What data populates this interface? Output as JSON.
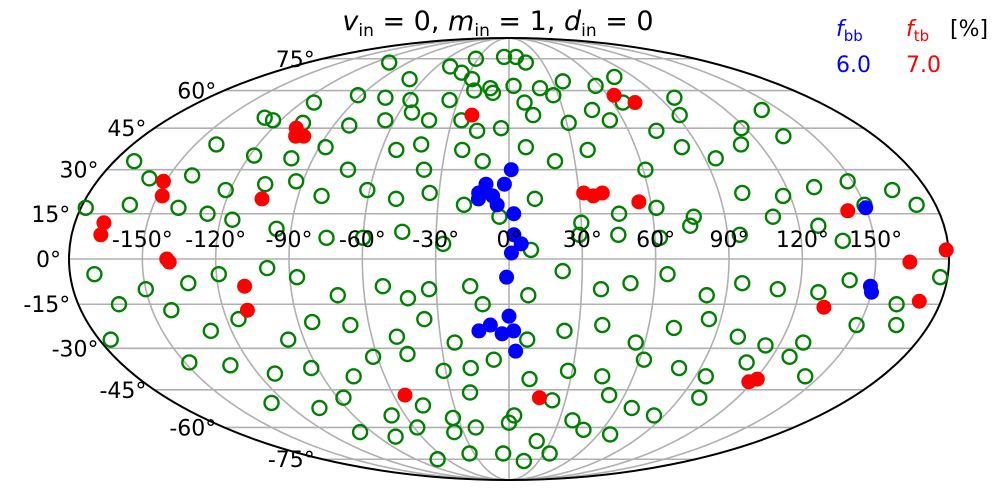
{
  "chart_data": {
    "type": "scatter",
    "projection": "mollweide",
    "title_parts": {
      "v": "v",
      "v_sub": "in",
      "v_val": " = 0, ",
      "m": "m",
      "m_sub": "in",
      "m_val": " = 1, ",
      "d": "d",
      "d_sub": "in",
      "d_val": " = 0"
    },
    "legend": {
      "placement": "top-right",
      "bb_symbol": "f",
      "bb_sub": "bb",
      "bb_value": "6.0",
      "tb_symbol": "f",
      "tb_sub": "tb",
      "tb_value": "7.0",
      "unit": "[%]"
    },
    "colors": {
      "bb": "#0000ff",
      "tb": "#ff0000",
      "other": "#008000",
      "grid": "#b0b0b0",
      "frame": "#000000"
    },
    "grid": true,
    "lon_ticks": [
      "-150°",
      "-120°",
      "-90°",
      "-60°",
      "-30°",
      "0°",
      "30°",
      "60°",
      "90°",
      "120°",
      "150°"
    ],
    "lon_tick_values": [
      -150,
      -120,
      -90,
      -60,
      -30,
      0,
      30,
      60,
      90,
      120,
      150
    ],
    "lat_ticks": [
      "75°",
      "60°",
      "45°",
      "30°",
      "15°",
      "0°",
      "-15°",
      "-30°",
      "-45°",
      "-60°",
      "-75°"
    ],
    "lat_tick_values": [
      75,
      60,
      45,
      30,
      15,
      0,
      -15,
      -30,
      -45,
      -60,
      -75
    ],
    "series": [
      {
        "label_key": "bb",
        "points": [
          [
            -13,
            22
          ],
          [
            -7,
            21
          ],
          [
            -2,
            25
          ],
          [
            -10,
            25
          ],
          [
            1,
            30
          ],
          [
            -13,
            20
          ],
          [
            -5,
            18
          ],
          [
            2,
            15
          ],
          [
            2,
            8
          ],
          [
            5,
            5
          ],
          [
            1,
            2
          ],
          [
            -1,
            -6
          ],
          [
            -13,
            -24
          ],
          [
            -8,
            -22
          ],
          [
            -3,
            -25
          ],
          [
            0,
            -19
          ],
          [
            2,
            -24
          ],
          [
            3,
            -31
          ],
          [
            150,
            17
          ],
          [
            149,
            -9
          ],
          [
            150,
            -11
          ]
        ]
      },
      {
        "label_key": "tb",
        "points": [
          [
            -20,
            50
          ],
          [
            32,
            22
          ],
          [
            36,
            21
          ],
          [
            40,
            22
          ],
          [
            55,
            19
          ],
          [
            64,
            58
          ],
          [
            73,
            55
          ],
          [
            -108,
            45
          ],
          [
            -105,
            42
          ],
          [
            -101,
            42
          ],
          [
            -105,
            20
          ],
          [
            -148,
            21
          ],
          [
            -151,
            26
          ],
          [
            -168,
            12
          ],
          [
            -168,
            8
          ],
          [
            -140,
            0
          ],
          [
            -139,
            -1
          ],
          [
            -110,
            -17
          ],
          [
            -109,
            -9
          ],
          [
            -54,
            -47
          ],
          [
            16,
            -48
          ],
          [
            118,
            -42
          ],
          [
            121,
            -41
          ],
          [
            132,
            -16
          ],
          [
            142,
            16
          ],
          [
            164,
            -1
          ],
          [
            171,
            -14
          ],
          [
            179,
            3
          ]
        ]
      },
      {
        "label_key": "other",
        "points": [
          [
            -107,
            73
          ],
          [
            -32,
            75
          ],
          [
            -5,
            76
          ],
          [
            7,
            76
          ],
          [
            15,
            73
          ],
          [
            -70,
            65
          ],
          [
            -49,
            71
          ],
          [
            -36,
            68
          ],
          [
            -26,
            65
          ],
          [
            -12,
            61
          ],
          [
            3,
            62
          ],
          [
            20,
            61
          ],
          [
            37,
            64
          ],
          [
            57,
            62
          ],
          [
            76,
            66
          ],
          [
            -113,
            55
          ],
          [
            -92,
            58
          ],
          [
            -74,
            57
          ],
          [
            -58,
            56
          ],
          [
            -35,
            56
          ],
          [
            -22,
            60
          ],
          [
            -10,
            59
          ],
          [
            9,
            55
          ],
          [
            27,
            58
          ],
          [
            46,
            52
          ],
          [
            66,
            55
          ],
          [
            99,
            57
          ],
          [
            -130,
            49
          ],
          [
            -124,
            48
          ],
          [
            -107,
            47
          ],
          [
            -82,
            46
          ],
          [
            -65,
            48
          ],
          [
            -53,
            51
          ],
          [
            -42,
            48
          ],
          [
            -25,
            48
          ],
          [
            -16,
            44
          ],
          [
            -4,
            45
          ],
          [
            13,
            50
          ],
          [
            31,
            47
          ],
          [
            53,
            48
          ],
          [
            74,
            44
          ],
          [
            92,
            50
          ],
          [
            118,
            45
          ],
          [
            140,
            52
          ],
          [
            -140,
            39
          ],
          [
            -118,
            35
          ],
          [
            -100,
            34
          ],
          [
            -87,
            38
          ],
          [
            -72,
            30
          ],
          [
            -53,
            37
          ],
          [
            -42,
            39
          ],
          [
            -38,
            30
          ],
          [
            -22,
            37
          ],
          [
            -12,
            33
          ],
          [
            8,
            38
          ],
          [
            21,
            33
          ],
          [
            37,
            37
          ],
          [
            61,
            30
          ],
          [
            82,
            38
          ],
          [
            95,
            34
          ],
          [
            111,
            39
          ],
          [
            135,
            42
          ],
          [
            -171,
            33
          ],
          [
            -158,
            27
          ],
          [
            -140,
            28
          ],
          [
            -122,
            23
          ],
          [
            -106,
            25
          ],
          [
            -93,
            26
          ],
          [
            -80,
            21
          ],
          [
            -61,
            23
          ],
          [
            -48,
            20
          ],
          [
            -34,
            22
          ],
          [
            -19,
            18
          ],
          [
            -4,
            14
          ],
          [
            11,
            20
          ],
          [
            30,
            12
          ],
          [
            46,
            15
          ],
          [
            62,
            17
          ],
          [
            77,
            14
          ],
          [
            100,
            22
          ],
          [
            117,
            21
          ],
          [
            132,
            24
          ],
          [
            148,
            26
          ],
          [
            165,
            23
          ],
          [
            -178,
            17
          ],
          [
            -160,
            18
          ],
          [
            -139,
            17
          ],
          [
            -126,
            15
          ],
          [
            -115,
            13
          ],
          [
            -96,
            10
          ],
          [
            -75,
            7
          ],
          [
            -60,
            7
          ],
          [
            -44,
            9
          ],
          [
            -27,
            5
          ],
          [
            9,
            3
          ],
          [
            29,
            8
          ],
          [
            45,
            8
          ],
          [
            62,
            7
          ],
          [
            75,
            11
          ],
          [
            95,
            8
          ],
          [
            110,
            14
          ],
          [
            128,
            11
          ],
          [
            137,
            6
          ],
          [
            150,
            18
          ],
          [
            172,
            18
          ],
          [
            -170,
            -5
          ],
          [
            -150,
            -10
          ],
          [
            -132,
            -8
          ],
          [
            -119,
            -5
          ],
          [
            -99,
            -3
          ],
          [
            -87,
            -6
          ],
          [
            -71,
            -12
          ],
          [
            -52,
            -9
          ],
          [
            -42,
            -13
          ],
          [
            -33,
            -10
          ],
          [
            -16,
            -9
          ],
          [
            8,
            -12
          ],
          [
            22,
            -4
          ],
          [
            38,
            -10
          ],
          [
            50,
            -8
          ],
          [
            65,
            -5
          ],
          [
            82,
            -12
          ],
          [
            96,
            -8
          ],
          [
            111,
            -10
          ],
          [
            128,
            -11
          ],
          [
            140,
            -7
          ],
          [
            162,
            -15
          ],
          [
            177,
            -6
          ],
          [
            -175,
            -27
          ],
          [
            -163,
            -15
          ],
          [
            -142,
            -17
          ],
          [
            -129,
            -24
          ],
          [
            -115,
            -20
          ],
          [
            -97,
            -27
          ],
          [
            -84,
            -21
          ],
          [
            -68,
            -22
          ],
          [
            -49,
            -26
          ],
          [
            -36,
            -20
          ],
          [
            -24,
            -28
          ],
          [
            -11,
            -15
          ],
          [
            8,
            -27
          ],
          [
            24,
            -24
          ],
          [
            40,
            -22
          ],
          [
            56,
            -28
          ],
          [
            71,
            -23
          ],
          [
            85,
            -20
          ],
          [
            100,
            -26
          ],
          [
            114,
            -29
          ],
          [
            130,
            -28
          ],
          [
            149,
            -22
          ],
          [
            166,
            -22
          ],
          [
            -148,
            -35
          ],
          [
            -130,
            -36
          ],
          [
            -112,
            -39
          ],
          [
            -93,
            -37
          ],
          [
            -75,
            -40
          ],
          [
            -62,
            -33
          ],
          [
            -46,
            -32
          ],
          [
            -31,
            -38
          ],
          [
            -18,
            -37
          ],
          [
            -7,
            -34
          ],
          [
            10,
            -41
          ],
          [
            28,
            -38
          ],
          [
            45,
            -40
          ],
          [
            62,
            -34
          ],
          [
            80,
            -37
          ],
          [
            95,
            -40
          ],
          [
            110,
            -35
          ],
          [
            128,
            -33
          ],
          [
            143,
            -40
          ],
          [
            -128,
            -50
          ],
          [
            -105,
            -52
          ],
          [
            -87,
            -48
          ],
          [
            -68,
            -55
          ],
          [
            -47,
            -51
          ],
          [
            -33,
            -56
          ],
          [
            -20,
            -46
          ],
          [
            3,
            -55
          ],
          [
            23,
            -49
          ],
          [
            38,
            -57
          ],
          [
            52,
            -47
          ],
          [
            68,
            -52
          ],
          [
            84,
            -55
          ],
          [
            100,
            -48
          ],
          [
            -98,
            -62
          ],
          [
            -78,
            -64
          ],
          [
            -58,
            -60
          ],
          [
            -36,
            -62
          ],
          [
            -21,
            -60
          ],
          [
            0,
            -58
          ],
          [
            20,
            -66
          ],
          [
            48,
            -61
          ],
          [
            68,
            -63
          ],
          [
            -69,
            -75
          ],
          [
            -34,
            -72
          ],
          [
            -5,
            -72
          ],
          [
            15,
            -76
          ],
          [
            35,
            -72
          ]
        ]
      }
    ]
  }
}
